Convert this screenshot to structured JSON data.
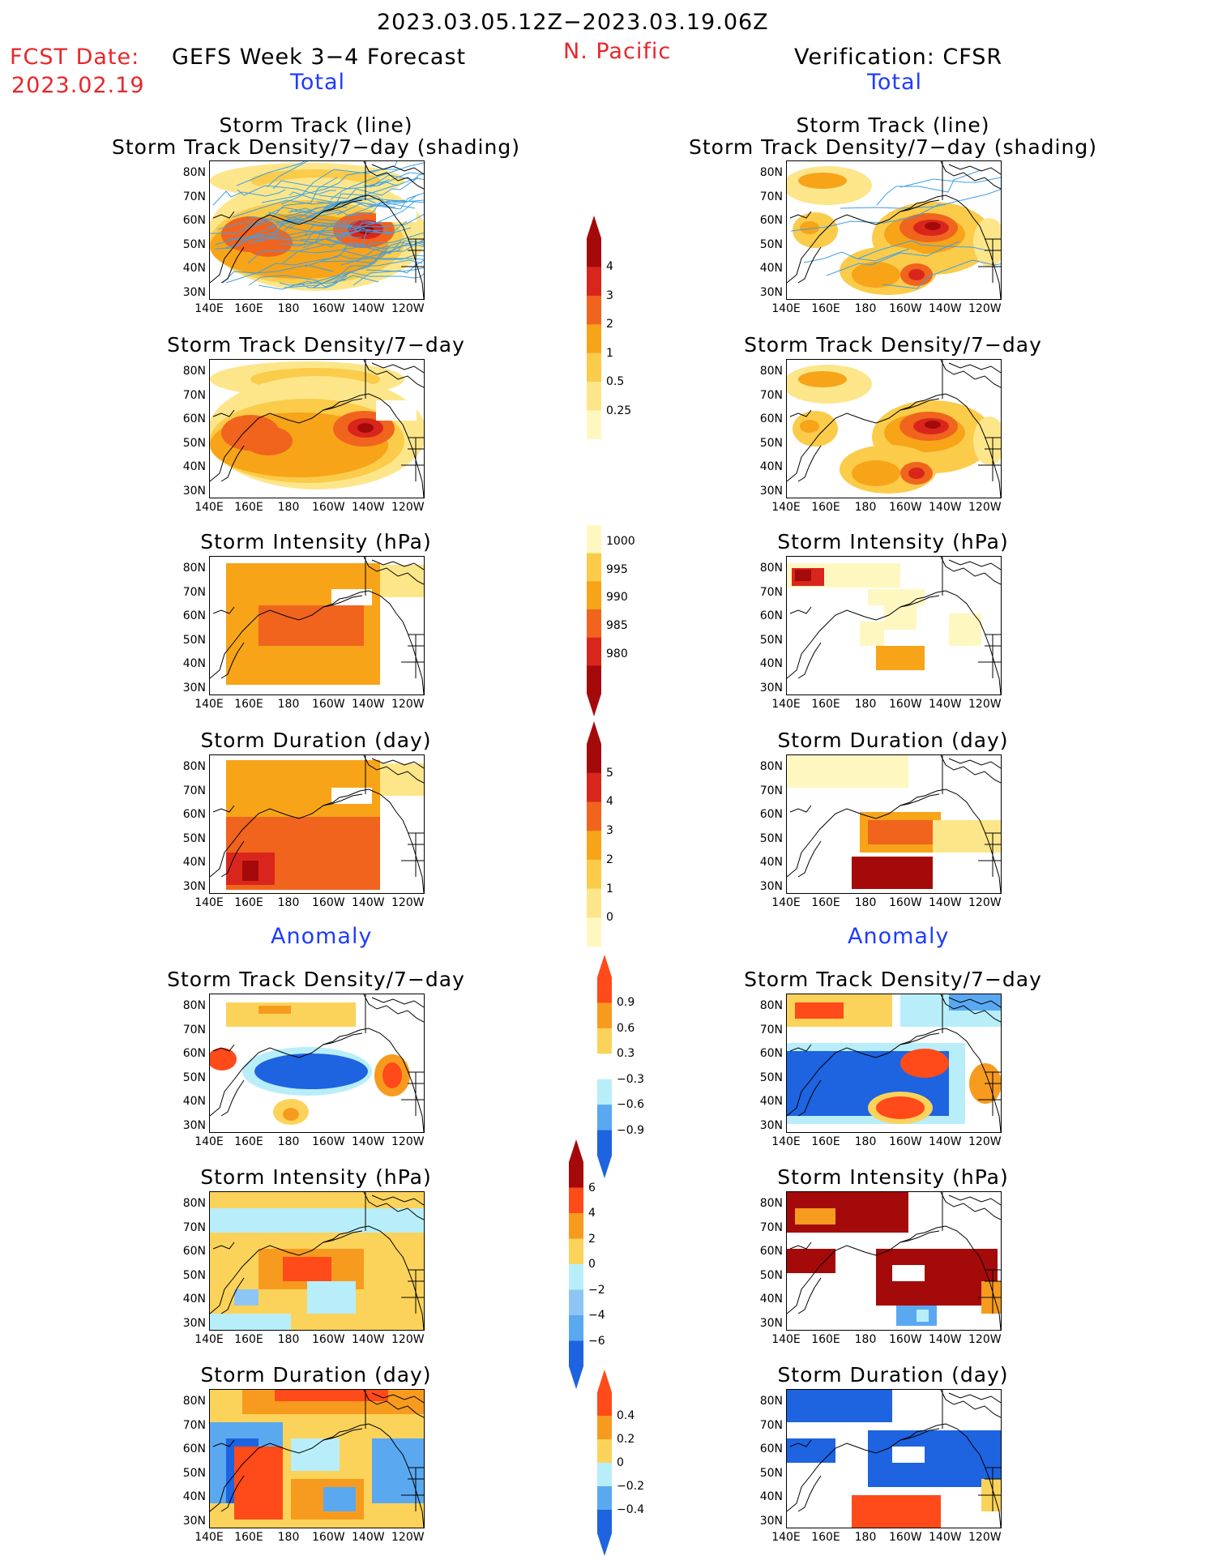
{
  "header": {
    "date_range": "2023.03.05.12Z−2023.03.19.06Z",
    "fcst_label": "FCST Date:",
    "fcst_date": "2023.02.19",
    "model_title": "GEFS Week 3−4 Forecast",
    "region": "N. Pacific",
    "verification": "Verification: CFSR"
  },
  "sections": {
    "total": "Total",
    "anomaly": "Anomaly"
  },
  "panel_titles": {
    "track_line": "Storm Track (line)",
    "track_shading": "Storm Track Density/7−day (shading)",
    "density": "Storm Track Density/7−day",
    "intensity": "Storm Intensity (hPa)",
    "duration": "Storm Duration (day)"
  },
  "axes": {
    "lat_labels": [
      "80N",
      "70N",
      "60N",
      "50N",
      "40N",
      "30N"
    ],
    "lon_labels": [
      "140E",
      "160E",
      "180",
      "160W",
      "140W",
      "120W"
    ]
  },
  "colorbars": {
    "density_total": {
      "labels": [
        "4",
        "3",
        "2",
        "1",
        "0.5",
        "0.25"
      ],
      "colors": [
        "#a50a0a",
        "#d9261c",
        "#f0641e",
        "#f7a418",
        "#fbcb4a",
        "#fde68a",
        "#fff7c0"
      ]
    },
    "intensity_total": {
      "labels": [
        "1000",
        "995",
        "990",
        "985",
        "980"
      ],
      "colors": [
        "#fff7c0",
        "#fbcb4a",
        "#f7a418",
        "#f0641e",
        "#d9261c",
        "#a50a0a"
      ]
    },
    "duration_total": {
      "labels": [
        "5",
        "4",
        "3",
        "2",
        "1",
        "0"
      ],
      "colors": [
        "#a50a0a",
        "#d9261c",
        "#f0641e",
        "#f7a418",
        "#fbcb4a",
        "#fde68a",
        "#fff7c0"
      ]
    },
    "density_anom": {
      "labels": [
        "0.9",
        "0.6",
        "0.3",
        "−0.3",
        "−0.6",
        "−0.9"
      ],
      "colors": [
        "#ff4a1a",
        "#f79b1e",
        "#fcd35a",
        "#ffffff",
        "#b8eefa",
        "#5aa8f0",
        "#1e63e0"
      ]
    },
    "intensity_anom": {
      "labels": [
        "6",
        "4",
        "2",
        "0",
        "−2",
        "−4",
        "−6"
      ],
      "colors": [
        "#a50a0a",
        "#ff4a1a",
        "#f79b1e",
        "#fcd35a",
        "#b8eefa",
        "#8dc6f4",
        "#5aa8f0",
        "#1e63e0"
      ]
    },
    "duration_anom": {
      "labels": [
        "0.4",
        "0.2",
        "0",
        "−0.2",
        "−0.4"
      ],
      "colors": [
        "#ff4a1a",
        "#f79b1e",
        "#fcd35a",
        "#b8eefa",
        "#5aa8f0",
        "#1e63e0"
      ]
    }
  },
  "colors": {
    "title_red": "#e8262b",
    "section_blue": "#1f3cff",
    "track_line": "#3fa0e6"
  }
}
